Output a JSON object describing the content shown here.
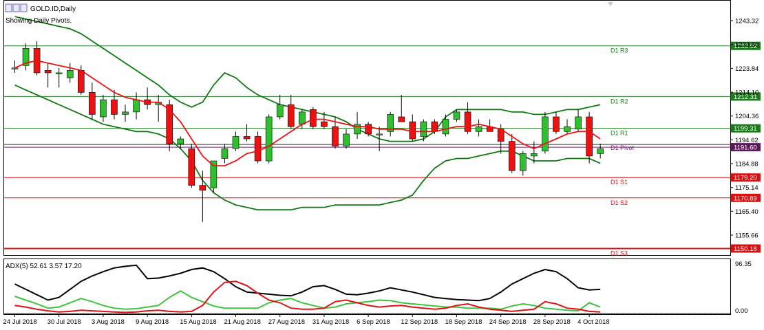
{
  "header": {
    "symbol_label": "GOLD.ID,Daily",
    "subtitle": "Showing Daily Pivots."
  },
  "colors": {
    "bull": "#2fbf2f",
    "bear": "#ee1111",
    "pivot_res": "#1e7b1e",
    "pivot_sup": "#e01010",
    "pivot_p": "#7a1f7a",
    "bollinger": "#0e7a0e",
    "ma": "#ee1111",
    "adx_main": "#000000",
    "adx_plus": "#3ec43e",
    "adx_minus": "#e01010"
  },
  "chart_data": [
    {
      "type": "candlestick",
      "ylim": [
        1147.5,
        1251.5
      ],
      "y_ticks": [
        "1243.32",
        "1233.60",
        "1223.84",
        "1214.10",
        "1204.36",
        "1194.62",
        "1184.88",
        "1175.14",
        "1165.40",
        "1155.66"
      ],
      "pivots": [
        {
          "label": "D1 R3",
          "value": 1233.02,
          "tag": "1233.02",
          "kind": "res"
        },
        {
          "label": "D1 R2",
          "value": 1212.31,
          "tag": "1212.31",
          "kind": "res"
        },
        {
          "label": "D1 R1",
          "value": 1199.31,
          "tag": "1199.31",
          "kind": "res"
        },
        {
          "label": "D1 Pivot",
          "value": 1191.6,
          "tag": "1191.60",
          "kind": "p"
        },
        {
          "label": "D1 S1",
          "value": 1179.2,
          "tag": "1179.20",
          "kind": "sup"
        },
        {
          "label": "D1 S2",
          "value": 1170.89,
          "tag": "1170.89",
          "kind": "sup"
        },
        {
          "label": "D1 S3",
          "value": 1150.18,
          "tag": "1150.18",
          "kind": "sup"
        }
      ],
      "candles": [
        {
          "o": 1224,
          "h": 1227,
          "l": 1222,
          "c": 1224
        },
        {
          "o": 1225,
          "h": 1234,
          "l": 1223,
          "c": 1232
        },
        {
          "o": 1232,
          "h": 1235,
          "l": 1221,
          "c": 1222
        },
        {
          "o": 1223,
          "h": 1226,
          "l": 1216,
          "c": 1222
        },
        {
          "o": 1222,
          "h": 1224,
          "l": 1216,
          "c": 1222
        },
        {
          "o": 1220,
          "h": 1226,
          "l": 1218,
          "c": 1223
        },
        {
          "o": 1223,
          "h": 1225,
          "l": 1213,
          "c": 1214
        },
        {
          "o": 1214,
          "h": 1218,
          "l": 1203,
          "c": 1205
        },
        {
          "o": 1204,
          "h": 1213,
          "l": 1202,
          "c": 1211
        },
        {
          "o": 1211,
          "h": 1215,
          "l": 1203,
          "c": 1205
        },
        {
          "o": 1205,
          "h": 1209,
          "l": 1202,
          "c": 1206
        },
        {
          "o": 1206,
          "h": 1214,
          "l": 1203,
          "c": 1211
        },
        {
          "o": 1211,
          "h": 1216,
          "l": 1207,
          "c": 1209
        },
        {
          "o": 1209,
          "h": 1213,
          "l": 1202,
          "c": 1210
        },
        {
          "o": 1209,
          "h": 1211,
          "l": 1190,
          "c": 1193
        },
        {
          "o": 1193,
          "h": 1196,
          "l": 1191,
          "c": 1195
        },
        {
          "o": 1191,
          "h": 1193,
          "l": 1175,
          "c": 1176
        },
        {
          "o": 1176,
          "h": 1182,
          "l": 1161,
          "c": 1174
        },
        {
          "o": 1175,
          "h": 1186,
          "l": 1173,
          "c": 1186
        },
        {
          "o": 1187,
          "h": 1193,
          "l": 1185,
          "c": 1191
        },
        {
          "o": 1191,
          "h": 1198,
          "l": 1190,
          "c": 1196
        },
        {
          "o": 1196,
          "h": 1201,
          "l": 1194,
          "c": 1195
        },
        {
          "o": 1196,
          "h": 1198,
          "l": 1185,
          "c": 1186
        },
        {
          "o": 1186,
          "h": 1205,
          "l": 1185,
          "c": 1204
        },
        {
          "o": 1204,
          "h": 1213,
          "l": 1203,
          "c": 1209
        },
        {
          "o": 1209,
          "h": 1213,
          "l": 1199,
          "c": 1200
        },
        {
          "o": 1201,
          "h": 1207,
          "l": 1199,
          "c": 1206
        },
        {
          "o": 1207,
          "h": 1208,
          "l": 1199,
          "c": 1200
        },
        {
          "o": 1202,
          "h": 1206,
          "l": 1199,
          "c": 1200
        },
        {
          "o": 1200,
          "h": 1204,
          "l": 1191,
          "c": 1192
        },
        {
          "o": 1192,
          "h": 1199,
          "l": 1191,
          "c": 1197
        },
        {
          "o": 1197,
          "h": 1206,
          "l": 1195,
          "c": 1201
        },
        {
          "o": 1201,
          "h": 1202,
          "l": 1196,
          "c": 1197
        },
        {
          "o": 1197,
          "h": 1200,
          "l": 1190,
          "c": 1197
        },
        {
          "o": 1198,
          "h": 1206,
          "l": 1196,
          "c": 1205
        },
        {
          "o": 1204,
          "h": 1213,
          "l": 1202,
          "c": 1202
        },
        {
          "o": 1202,
          "h": 1205,
          "l": 1194,
          "c": 1195
        },
        {
          "o": 1196,
          "h": 1203,
          "l": 1194,
          "c": 1202
        },
        {
          "o": 1202,
          "h": 1203,
          "l": 1197,
          "c": 1198
        },
        {
          "o": 1197,
          "h": 1205,
          "l": 1196,
          "c": 1203
        },
        {
          "o": 1203,
          "h": 1207,
          "l": 1202,
          "c": 1206
        },
        {
          "o": 1206,
          "h": 1210,
          "l": 1197,
          "c": 1198
        },
        {
          "o": 1198,
          "h": 1203,
          "l": 1196,
          "c": 1200
        },
        {
          "o": 1200,
          "h": 1203,
          "l": 1198,
          "c": 1198
        },
        {
          "o": 1199,
          "h": 1201,
          "l": 1189,
          "c": 1194
        },
        {
          "o": 1194,
          "h": 1197,
          "l": 1181,
          "c": 1182
        },
        {
          "o": 1182,
          "h": 1190,
          "l": 1180,
          "c": 1189
        },
        {
          "o": 1188,
          "h": 1194,
          "l": 1185,
          "c": 1189
        },
        {
          "o": 1190,
          "h": 1206,
          "l": 1189,
          "c": 1204
        },
        {
          "o": 1204,
          "h": 1206,
          "l": 1197,
          "c": 1198
        },
        {
          "o": 1198,
          "h": 1203,
          "l": 1197,
          "c": 1200
        },
        {
          "o": 1199,
          "h": 1207,
          "l": 1198,
          "c": 1204
        },
        {
          "o": 1204,
          "h": 1206,
          "l": 1185,
          "c": 1188
        },
        {
          "o": 1189,
          "h": 1193,
          "l": 1187,
          "c": 1191
        }
      ],
      "ma": [
        1224,
        1226,
        1227,
        1226,
        1225,
        1224,
        1223,
        1220,
        1217,
        1214,
        1212,
        1211,
        1210,
        1210,
        1207,
        1202,
        1195,
        1188,
        1184,
        1184,
        1186,
        1189,
        1190,
        1192,
        1195,
        1198,
        1201,
        1203,
        1203,
        1202,
        1201,
        1200,
        1200,
        1199,
        1199,
        1199,
        1198,
        1198,
        1198,
        1199,
        1200,
        1200,
        1201,
        1200,
        1199,
        1196,
        1193,
        1191,
        1193,
        1195,
        1197,
        1198,
        1198,
        1195
      ],
      "bb_upper": [
        1245,
        1244,
        1243,
        1242,
        1241,
        1240,
        1238,
        1235,
        1232,
        1229,
        1226,
        1223,
        1220,
        1217,
        1213,
        1210,
        1208,
        1210,
        1217,
        1222,
        1220,
        1216,
        1213,
        1211,
        1209,
        1208,
        1207,
        1206,
        1205,
        1204,
        1202,
        1199,
        1197,
        1195,
        1194,
        1194,
        1194,
        1195,
        1198,
        1204,
        1207,
        1207,
        1207,
        1207,
        1207,
        1206,
        1206,
        1205,
        1205,
        1206,
        1207,
        1207,
        1208,
        1209
      ],
      "bb_lower": [
        1217,
        1215,
        1213,
        1211,
        1209,
        1207,
        1205,
        1203,
        1201,
        1200,
        1199,
        1198,
        1198,
        1197,
        1195,
        1191,
        1186,
        1178,
        1173,
        1170,
        1168,
        1167,
        1166,
        1166,
        1166,
        1166,
        1167,
        1167,
        1167,
        1168,
        1168,
        1168,
        1168,
        1168,
        1169,
        1170,
        1172,
        1178,
        1183,
        1186,
        1187,
        1187,
        1188,
        1189,
        1190,
        1190,
        1188,
        1186,
        1186,
        1186,
        1187,
        1187,
        1187,
        1185
      ]
    },
    {
      "type": "line",
      "title": "ADX(5) 52.61 3.57 17.20",
      "ylim": [
        0,
        100
      ],
      "y_ticks": [
        "96.35",
        "0.00"
      ],
      "x_labels": [
        {
          "index": 0,
          "label": "24 Jul 2018"
        },
        {
          "index": 4,
          "label": "30 Jul 2018"
        },
        {
          "index": 8,
          "label": "3 Aug 2018"
        },
        {
          "index": 12,
          "label": "9 Aug 2018"
        },
        {
          "index": 16,
          "label": "15 Aug 2018"
        },
        {
          "index": 20,
          "label": "21 Aug 2018"
        },
        {
          "index": 24,
          "label": "27 Aug 2018"
        },
        {
          "index": 28,
          "label": "31 Aug 2018"
        },
        {
          "index": 32,
          "label": "6 Sep 2018"
        },
        {
          "index": 36,
          "label": "12 Sep 2018"
        },
        {
          "index": 40,
          "label": "18 Sep 2018"
        },
        {
          "index": 44,
          "label": "24 Sep 2018"
        },
        {
          "index": 48,
          "label": "28 Sep 2018"
        },
        {
          "index": 52,
          "label": "4 Oct 2018"
        }
      ],
      "series": [
        {
          "values": [
            55,
            45,
            35,
            25,
            30,
            45,
            60,
            70,
            78,
            85,
            88,
            90,
            65,
            66,
            70,
            75,
            82,
            85,
            78,
            65,
            50,
            40,
            38,
            36,
            34,
            33,
            40,
            50,
            52,
            45,
            36,
            35,
            38,
            42,
            48,
            44,
            40,
            35,
            30,
            28,
            26,
            25,
            24,
            28,
            40,
            55,
            65,
            75,
            82,
            78,
            65,
            48,
            44,
            45
          ]
        },
        {
          "values": [
            32,
            25,
            18,
            10,
            12,
            20,
            28,
            22,
            15,
            10,
            8,
            9,
            12,
            15,
            30,
            42,
            30,
            22,
            14,
            10,
            10,
            10,
            10,
            20,
            25,
            28,
            20,
            15,
            10,
            12,
            18,
            20,
            22,
            25,
            24,
            20,
            18,
            16,
            14,
            12,
            12,
            10,
            10,
            10,
            8,
            14,
            18,
            15,
            10,
            8,
            6,
            5,
            20,
            12
          ]
        },
        {
          "values": [
            15,
            12,
            8,
            5,
            3,
            4,
            6,
            5,
            4,
            3,
            2,
            3,
            5,
            6,
            4,
            3,
            4,
            15,
            40,
            58,
            60,
            52,
            38,
            25,
            20,
            10,
            8,
            8,
            10,
            22,
            25,
            20,
            15,
            12,
            14,
            15,
            12,
            10,
            8,
            10,
            15,
            18,
            12,
            8,
            6,
            4,
            6,
            8,
            22,
            18,
            10,
            8,
            4,
            3
          ]
        }
      ]
    }
  ]
}
